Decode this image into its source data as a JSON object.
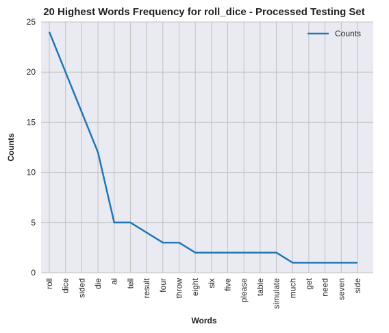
{
  "chart_data": {
    "type": "line",
    "title": "20 Highest Words Frequency for roll_dice - Processed Testing Set",
    "xlabel": "Words",
    "ylabel": "Counts",
    "categories": [
      "roll",
      "dice",
      "sided",
      "die",
      "ai",
      "tell",
      "result",
      "four",
      "throw",
      "eight",
      "six",
      "five",
      "please",
      "table",
      "simulate",
      "much",
      "get",
      "need",
      "seven",
      "side"
    ],
    "series": [
      {
        "name": "Counts",
        "values": [
          24,
          20,
          16,
          12,
          5,
          5,
          4,
          3,
          3,
          2,
          2,
          2,
          2,
          2,
          2,
          1,
          1,
          1,
          1,
          1
        ]
      }
    ],
    "ylim": [
      0,
      25
    ],
    "yticks": [
      0,
      5,
      10,
      15,
      20,
      25
    ],
    "grid": true,
    "legend_position": "top-right",
    "colors": {
      "line": "#1f77b4",
      "plot_bg": "#eaeaf2",
      "grid": "#c0c0c0"
    }
  }
}
